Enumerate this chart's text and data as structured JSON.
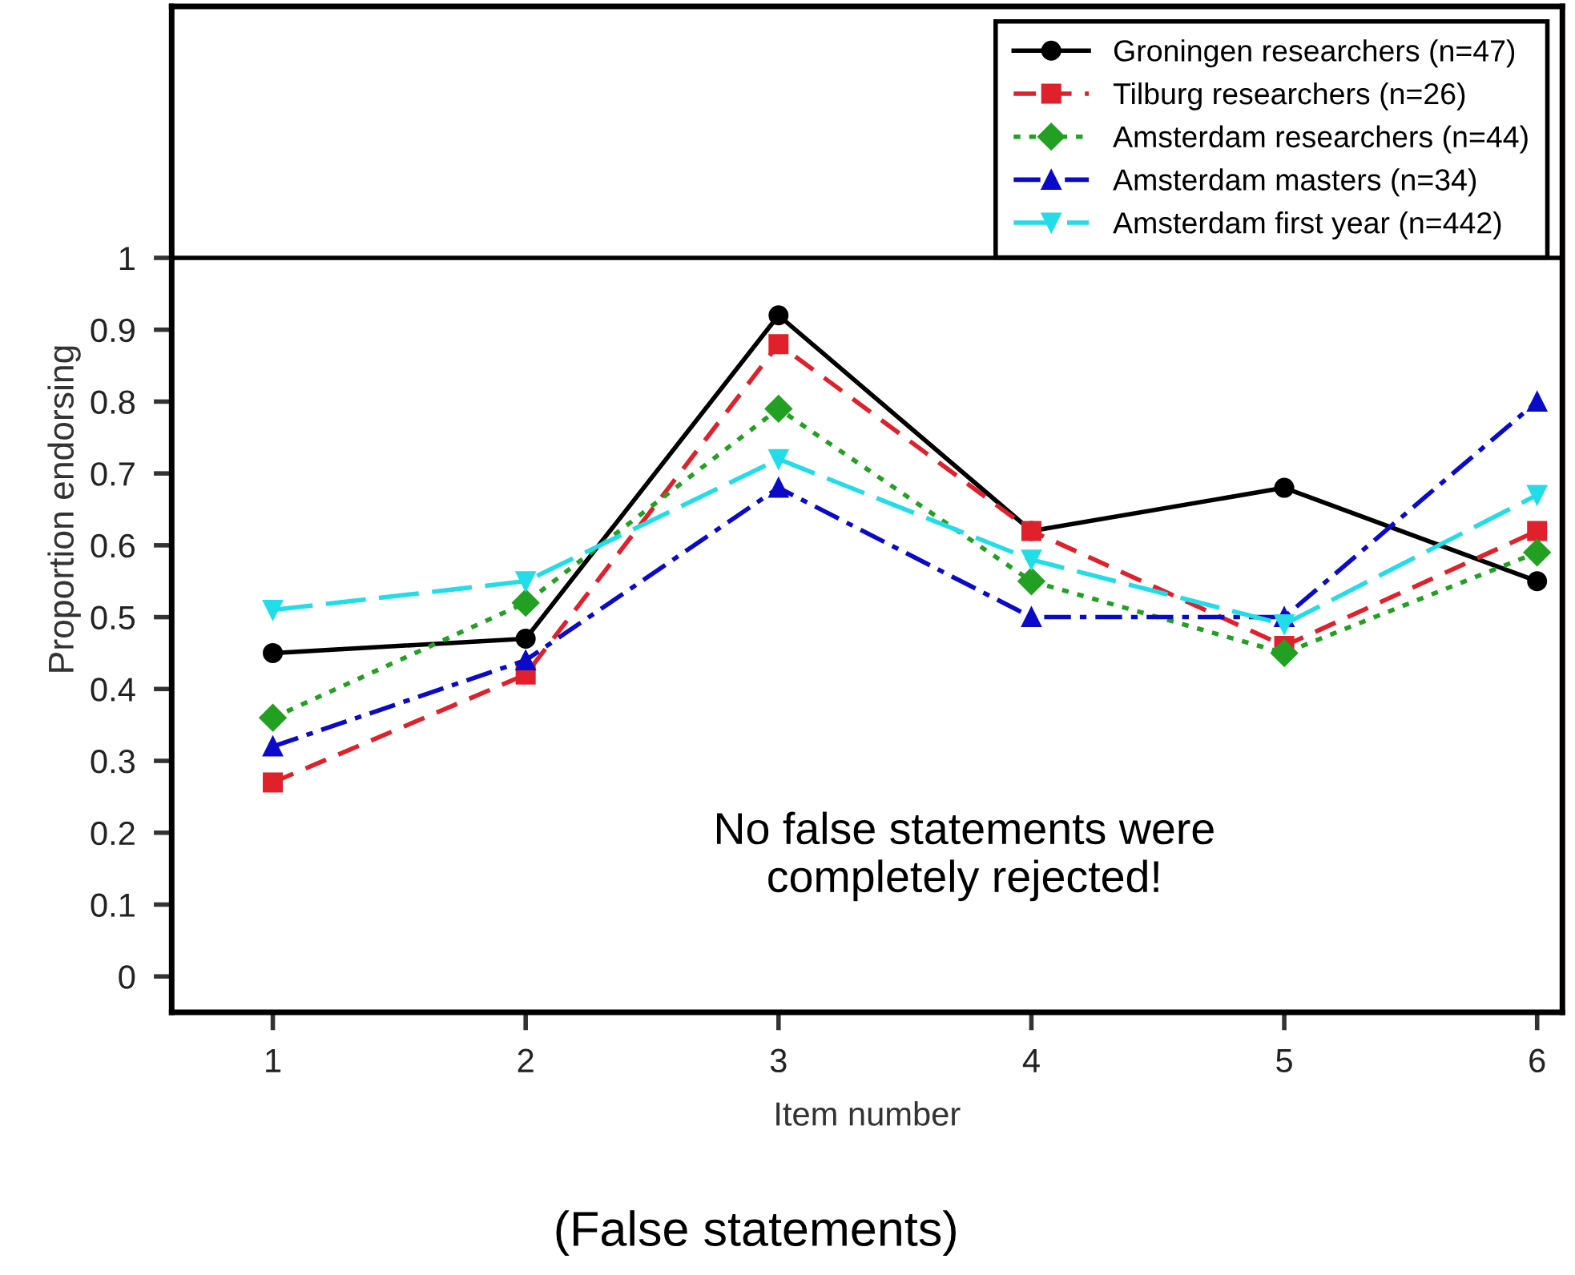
{
  "chart_data": {
    "type": "line",
    "xlabel": "Item number",
    "ylabel": "Proportion endorsing",
    "x": [
      1,
      2,
      3,
      4,
      5,
      6
    ],
    "series": [
      {
        "name": "Groningen researchers (n=47)",
        "color": "#000000",
        "marker": "circle",
        "line_style": "solid",
        "values": [
          0.45,
          0.47,
          0.92,
          0.62,
          0.68,
          0.55
        ]
      },
      {
        "name": "Tilburg researchers (n=26)",
        "color": "#e0202a",
        "marker": "square",
        "line_style": "dashed",
        "values": [
          0.27,
          0.42,
          0.88,
          0.62,
          0.46,
          0.62
        ]
      },
      {
        "name": "Amsterdam researchers (n=44)",
        "color": "#22a022",
        "marker": "diamond",
        "line_style": "dotted",
        "values": [
          0.36,
          0.52,
          0.79,
          0.55,
          0.45,
          0.59
        ]
      },
      {
        "name": "Amsterdam masters (n=34)",
        "color": "#0a0ac8",
        "marker": "triangle",
        "line_style": "dashdot",
        "values": [
          0.32,
          0.44,
          0.68,
          0.5,
          0.5,
          0.8
        ]
      },
      {
        "name": "Amsterdam first year (n=442)",
        "color": "#22dde8",
        "marker": "triangle_down",
        "line_style": "longdash",
        "values": [
          0.51,
          0.55,
          0.72,
          0.58,
          0.49,
          0.67
        ]
      }
    ],
    "xlim": [
      0.6,
      6.1
    ],
    "ylim": [
      -0.05,
      1.35
    ],
    "xticks": [
      1,
      2,
      3,
      4,
      5,
      6
    ],
    "yticks": [
      0,
      0.1,
      0.2,
      0.3,
      0.4,
      0.5,
      0.6,
      0.7,
      0.8,
      0.9,
      1
    ],
    "ref_lines": [
      {
        "axis": "y",
        "value": 1,
        "color": "#000000"
      }
    ],
    "annotations": [
      "No false statements were\ncompletely rejected!",
      "(False statements)"
    ],
    "grid": false,
    "legend": "top right"
  }
}
